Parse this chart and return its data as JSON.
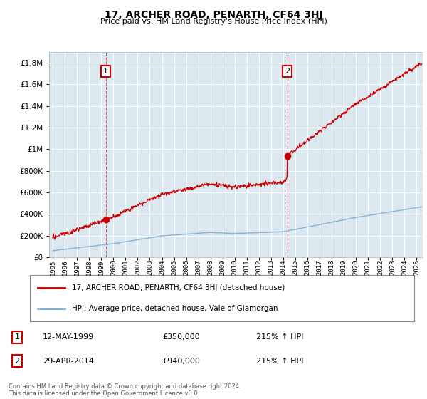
{
  "title": "17, ARCHER ROAD, PENARTH, CF64 3HJ",
  "subtitle": "Price paid vs. HM Land Registry's House Price Index (HPI)",
  "sale1_date": "12-MAY-1999",
  "sale1_price": 350000,
  "sale1_year": 1999.375,
  "sale2_date": "29-APR-2014",
  "sale2_price": 940000,
  "sale2_year": 2014.33,
  "legend_line1": "17, ARCHER ROAD, PENARTH, CF64 3HJ (detached house)",
  "legend_line2": "HPI: Average price, detached house, Vale of Glamorgan",
  "footer": "Contains HM Land Registry data © Crown copyright and database right 2024.\nThis data is licensed under the Open Government Licence v3.0.",
  "red_color": "#cc0000",
  "blue_color": "#7aadcf",
  "ylim": [
    0,
    1900000
  ],
  "xlim_start": 1994.7,
  "xlim_end": 2025.5,
  "plot_bg": "#dce8f0",
  "grid_color": "#ffffff",
  "ann_box_color": "#cc0000",
  "sale1_hpi_text": "215% ↑ HPI",
  "sale2_hpi_text": "215% ↑ HPI"
}
